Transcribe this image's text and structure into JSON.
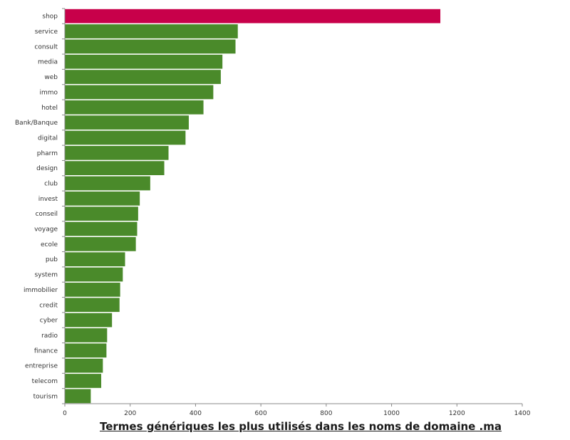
{
  "chart_data": {
    "type": "bar",
    "orientation": "horizontal",
    "title": "Termes génériques les plus utilisés dans les noms de domaine .ma",
    "categories": [
      "shop",
      "service",
      "consult",
      "media",
      "web",
      "immo",
      "hotel",
      "Bank/Banque",
      "digital",
      "pharm",
      "design",
      "club",
      "invest",
      "conseil",
      "voyage",
      "ecole",
      "pub",
      "system",
      "immobilier",
      "credit",
      "cyber",
      "radio",
      "finance",
      "entreprise",
      "telecom",
      "tourism"
    ],
    "values": [
      1150,
      530,
      523,
      483,
      478,
      455,
      425,
      380,
      370,
      318,
      305,
      262,
      230,
      225,
      222,
      218,
      185,
      178,
      170,
      168,
      145,
      130,
      128,
      117,
      112,
      80
    ],
    "xlim": [
      0,
      1400
    ],
    "xticks": [
      "0",
      "200",
      "400",
      "600",
      "800",
      "1000",
      "1200",
      "1400"
    ],
    "grid": false,
    "colors": {
      "highlight": "#c8004a",
      "bar": "#4a8a2a",
      "axis": "#888888"
    },
    "highlight_index": 0
  }
}
